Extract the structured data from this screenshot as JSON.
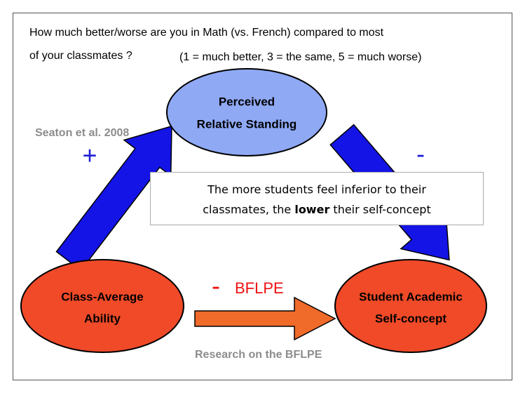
{
  "question": {
    "line1": "How much better/worse are you in Math (vs. French) compared to most",
    "line2": "of your classmates ?",
    "scale": "(1 = much better, 3 = the same, 5 = much worse)"
  },
  "nodes": [
    {
      "lines": [
        "Perceived",
        "Relative Standing"
      ]
    },
    {
      "lines": [
        "Class-Average",
        "Ability"
      ]
    },
    {
      "lines": [
        "Student Academic",
        "Self-concept"
      ]
    }
  ],
  "edges": [
    {
      "sign": "+",
      "source": "Seaton et al. 2008"
    },
    {
      "sign": "-"
    },
    {
      "sign": "-",
      "label": "BFLPE",
      "source": "Research on the BFLPE"
    }
  ],
  "note": {
    "line1": "The more students feel inferior to their",
    "line2_start": "classmates, the ",
    "line2_bold": "lower",
    "line2_end": " their self-concept"
  }
}
